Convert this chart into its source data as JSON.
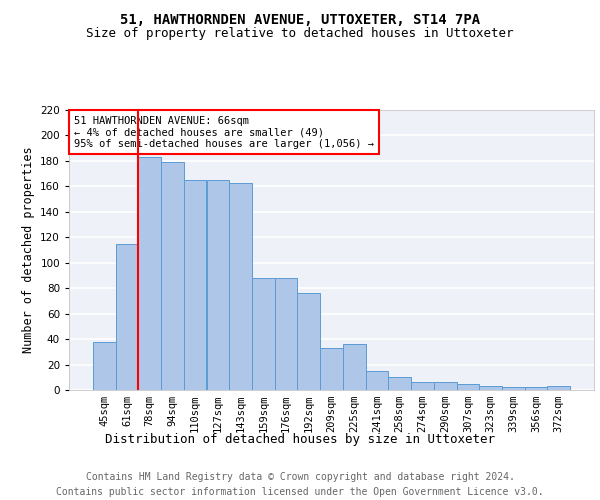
{
  "title1": "51, HAWTHORNDEN AVENUE, UTTOXETER, ST14 7PA",
  "title2": "Size of property relative to detached houses in Uttoxeter",
  "xlabel": "Distribution of detached houses by size in Uttoxeter",
  "ylabel": "Number of detached properties",
  "categories": [
    "45sqm",
    "61sqm",
    "78sqm",
    "94sqm",
    "110sqm",
    "127sqm",
    "143sqm",
    "159sqm",
    "176sqm",
    "192sqm",
    "209sqm",
    "225sqm",
    "241sqm",
    "258sqm",
    "274sqm",
    "290sqm",
    "307sqm",
    "323sqm",
    "339sqm",
    "356sqm",
    "372sqm"
  ],
  "values": [
    38,
    115,
    183,
    179,
    165,
    165,
    163,
    88,
    88,
    76,
    33,
    36,
    15,
    10,
    6,
    6,
    5,
    3,
    2,
    2,
    3
  ],
  "bar_color": "#aec6e8",
  "bar_edge_color": "#5b9bd5",
  "red_line_x": 1.5,
  "annotation_line1": "51 HAWTHORNDEN AVENUE: 66sqm",
  "annotation_line2": "← 4% of detached houses are smaller (49)",
  "annotation_line3": "95% of semi-detached houses are larger (1,056) →",
  "annotation_box_color": "white",
  "annotation_box_edge": "red",
  "footer_text": "Contains HM Land Registry data © Crown copyright and database right 2024.\nContains public sector information licensed under the Open Government Licence v3.0.",
  "ylim": [
    0,
    220
  ],
  "yticks": [
    0,
    20,
    40,
    60,
    80,
    100,
    120,
    140,
    160,
    180,
    200,
    220
  ],
  "background_color": "#eef2f8",
  "grid_color": "white",
  "title1_fontsize": 10,
  "title2_fontsize": 9,
  "ylabel_fontsize": 8.5,
  "xlabel_fontsize": 9,
  "tick_fontsize": 7.5,
  "annotation_fontsize": 7.5,
  "footer_fontsize": 7
}
